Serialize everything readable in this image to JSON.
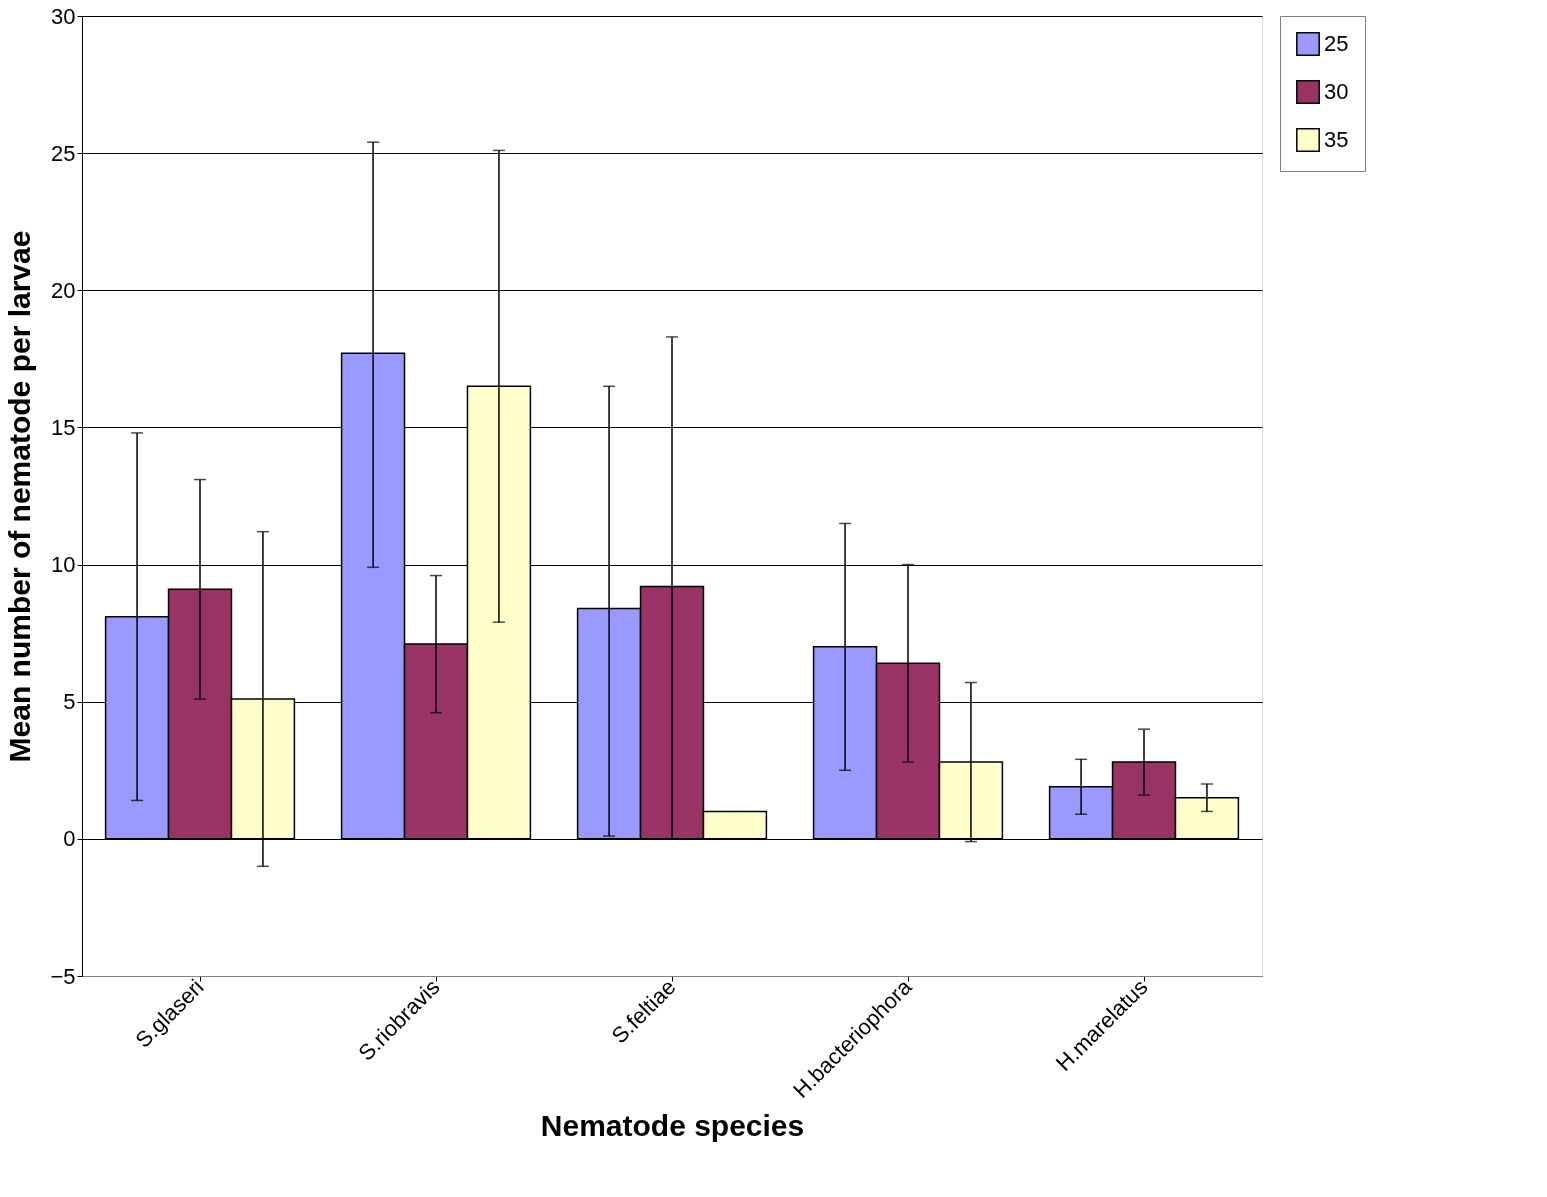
{
  "chart_data": {
    "type": "bar",
    "xlabel": "Nematode species",
    "ylabel": "Mean number of nematode per larvae",
    "categories": [
      "S.glaseri",
      "S.riobravis",
      "S.feltiae",
      "H.bacteriophora",
      "H.marelatus"
    ],
    "series": [
      {
        "name": "25",
        "color": "#9999ff",
        "values": [
          8.1,
          17.7,
          8.4,
          7.0,
          1.9
        ],
        "errors": [
          [
            1.4,
            14.8
          ],
          [
            9.9,
            25.4
          ],
          [
            0.1,
            16.5
          ],
          [
            2.5,
            11.5
          ],
          [
            0.9,
            2.9
          ]
        ]
      },
      {
        "name": "30",
        "color": "#993366",
        "values": [
          9.1,
          7.1,
          9.2,
          6.4,
          2.8
        ],
        "errors": [
          [
            5.1,
            13.1
          ],
          [
            4.6,
            9.6
          ],
          [
            0.0,
            18.3
          ],
          [
            2.8,
            10.0
          ],
          [
            1.6,
            4.0
          ]
        ]
      },
      {
        "name": "35",
        "color": "#ffffcc",
        "values": [
          5.1,
          16.5,
          1.0,
          2.8,
          1.5
        ],
        "errors": [
          [
            -1.0,
            11.2
          ],
          [
            7.9,
            25.1
          ],
          null,
          [
            -0.1,
            5.7
          ],
          [
            1.0,
            2.0
          ]
        ]
      }
    ],
    "ylim": [
      -5,
      30
    ],
    "yticks": [
      -5,
      0,
      5,
      10,
      15,
      20,
      25,
      30
    ],
    "grid": "y",
    "legend": "right"
  }
}
